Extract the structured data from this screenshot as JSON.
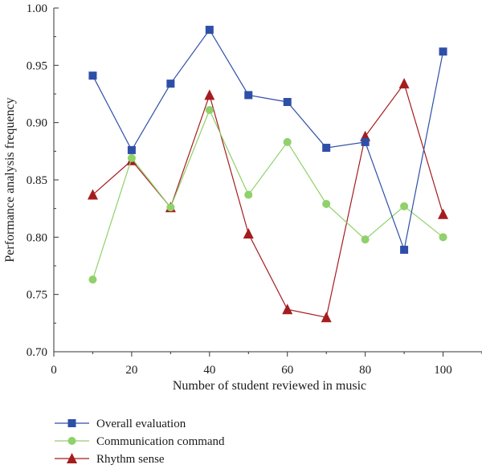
{
  "chart_data": {
    "type": "line",
    "title": "",
    "xlabel": "Number of student reviewed in music",
    "ylabel": "Performance analysis frequency",
    "xlim": [
      0,
      110
    ],
    "ylim": [
      0.7,
      1.0
    ],
    "xticks": [
      0,
      20,
      40,
      60,
      80,
      100
    ],
    "yticks": [
      0.7,
      0.75,
      0.8,
      0.85,
      0.9,
      0.95,
      1.0
    ],
    "xtick_labels": [
      "0",
      "20",
      "40",
      "60",
      "80",
      "100"
    ],
    "ytick_labels": [
      "0.70",
      "0.75",
      "0.80",
      "0.85",
      "0.90",
      "0.95",
      "1.00"
    ],
    "grid": false,
    "legend_position": "bottom-left, below plot",
    "x": [
      10,
      20,
      30,
      40,
      50,
      60,
      70,
      80,
      90,
      100
    ],
    "series": [
      {
        "name": "Overall evaluation",
        "marker": "square",
        "color": "#2e4fa8",
        "values": [
          0.941,
          0.876,
          0.934,
          0.981,
          0.924,
          0.918,
          0.878,
          0.883,
          0.789,
          0.962
        ]
      },
      {
        "name": "Communication command",
        "marker": "circle",
        "color": "#8fd16a",
        "values": [
          0.763,
          0.869,
          0.826,
          0.911,
          0.837,
          0.883,
          0.829,
          0.798,
          0.827,
          0.8
        ]
      },
      {
        "name": "Rhythm sense",
        "marker": "triangle",
        "color": "#a51c1f",
        "values": [
          0.837,
          0.867,
          0.826,
          0.924,
          0.803,
          0.737,
          0.73,
          0.888,
          0.934,
          0.82
        ]
      }
    ]
  }
}
